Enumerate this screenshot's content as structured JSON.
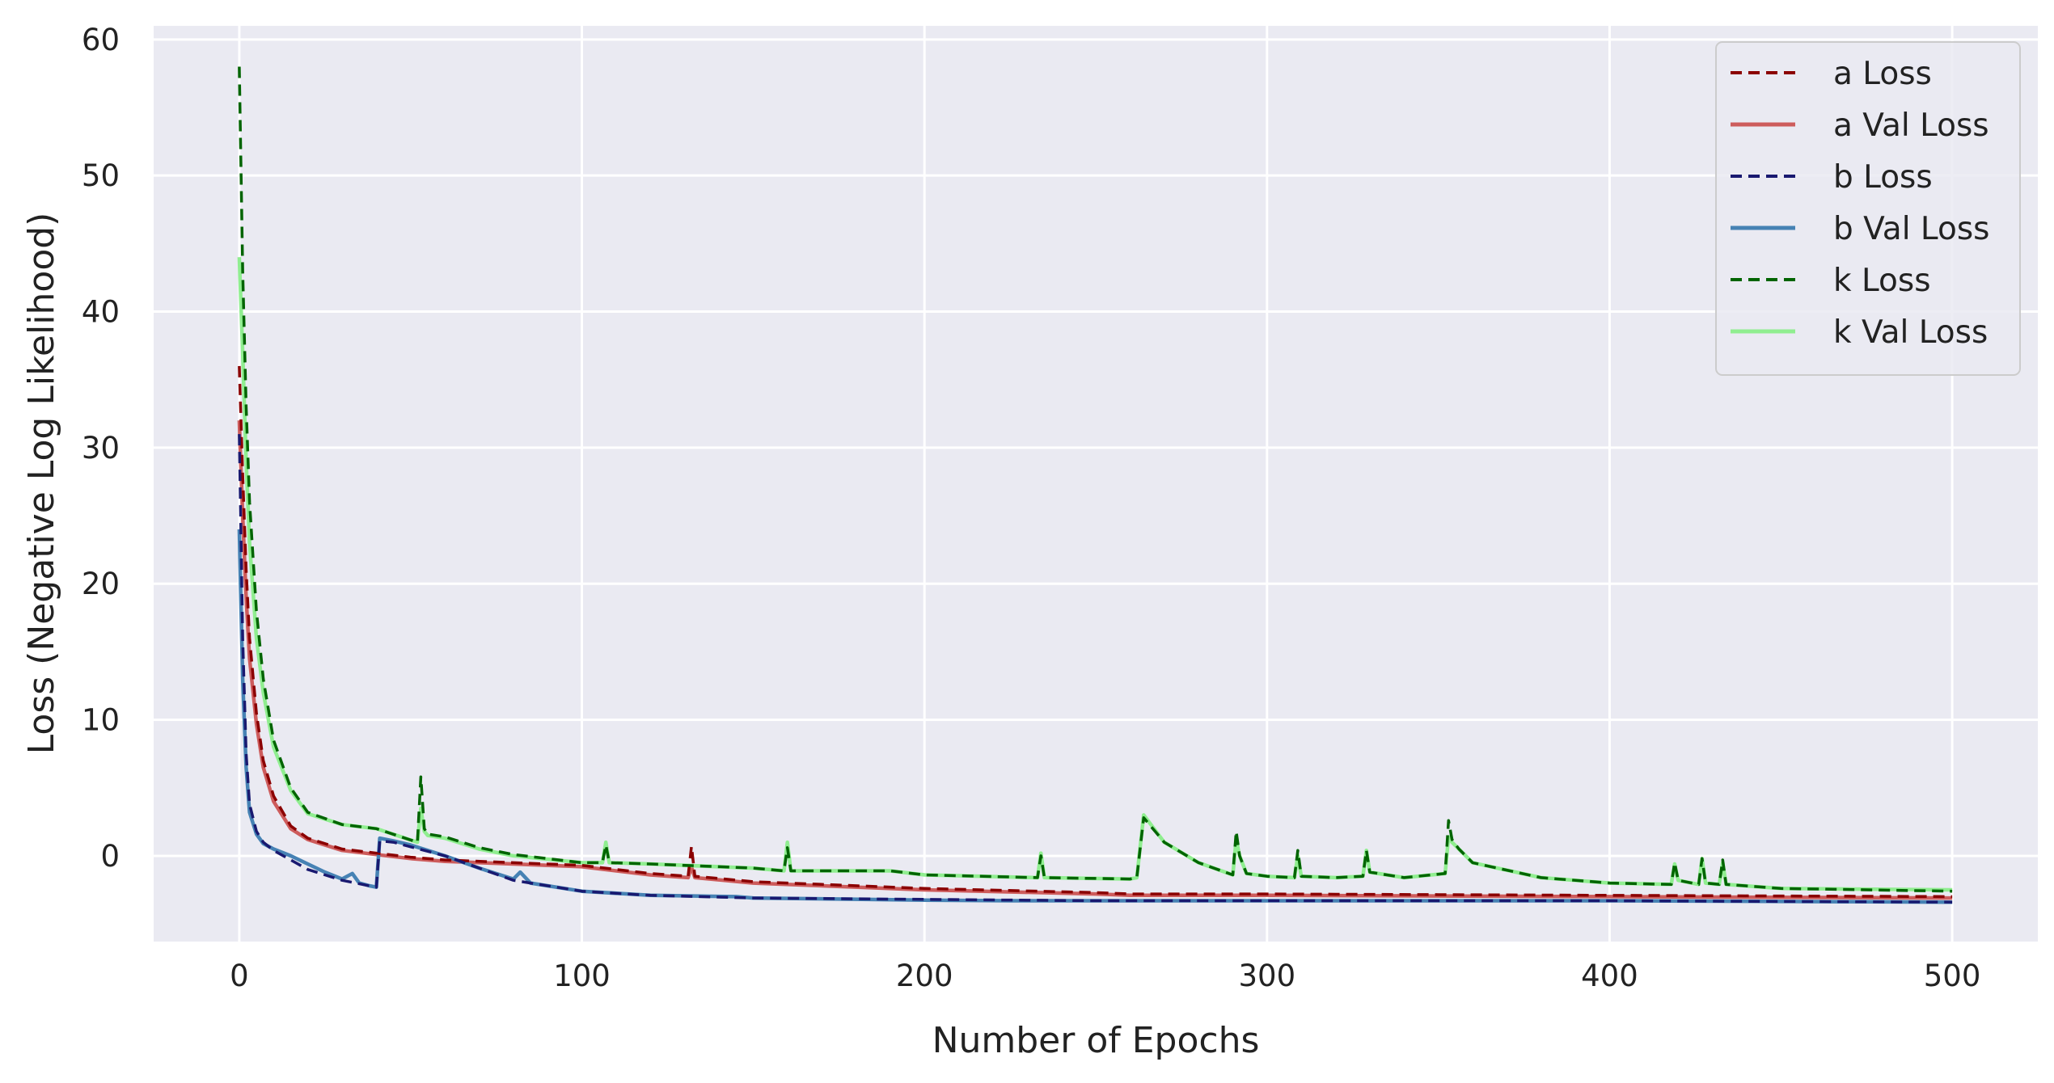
{
  "chart_data": {
    "type": "line",
    "title": "",
    "xlabel": "Number of Epochs",
    "ylabel": "Loss (Negative Log Likelihood)",
    "xlim": [
      -25,
      525
    ],
    "ylim": [
      -6.3,
      61
    ],
    "xticks": [
      0,
      100,
      200,
      300,
      400,
      500
    ],
    "yticks": [
      0,
      10,
      20,
      30,
      40,
      50,
      60
    ],
    "grid": true,
    "legend_position": "top-right",
    "series": [
      {
        "name": "a Loss",
        "color": "#8b0000",
        "dash": "dashed",
        "x": [
          0,
          1,
          2,
          3,
          5,
          7,
          10,
          15,
          20,
          30,
          40,
          50,
          60,
          80,
          100,
          120,
          131,
          132,
          133,
          150,
          200,
          250,
          260,
          300,
          400,
          500
        ],
        "y": [
          36,
          28,
          21,
          16,
          10.5,
          7,
          4.4,
          2.2,
          1.3,
          0.5,
          0.2,
          -0.1,
          -0.3,
          -0.5,
          -0.7,
          -1.3,
          -1.5,
          0.7,
          -1.5,
          -1.9,
          -2.4,
          -2.7,
          -2.8,
          -2.8,
          -2.9,
          -3.0
        ]
      },
      {
        "name": "a Val Loss",
        "color": "#cd5c5c",
        "dash": "solid",
        "x": [
          0,
          1,
          2,
          3,
          5,
          7,
          10,
          15,
          20,
          30,
          40,
          50,
          60,
          80,
          100,
          120,
          131,
          132,
          133,
          150,
          200,
          250,
          260,
          300,
          400,
          500
        ],
        "y": [
          32,
          25,
          19,
          14.5,
          9.7,
          6.5,
          4.0,
          2.0,
          1.2,
          0.4,
          0.1,
          -0.2,
          -0.4,
          -0.6,
          -0.8,
          -1.4,
          -1.6,
          -0.8,
          -1.6,
          -2.0,
          -2.5,
          -2.8,
          -2.9,
          -2.9,
          -3.0,
          -3.1
        ]
      },
      {
        "name": "b Loss",
        "color": "#191970",
        "dash": "dashed",
        "x": [
          0,
          1,
          2,
          3,
          5,
          7,
          10,
          15,
          20,
          30,
          38,
          40,
          41,
          45,
          60,
          80,
          100,
          120,
          150,
          200,
          250,
          300,
          400,
          500
        ],
        "y": [
          31,
          16,
          7.5,
          3.8,
          1.8,
          1.0,
          0.4,
          -0.3,
          -1.0,
          -1.8,
          -2.2,
          -2.3,
          1.1,
          1.0,
          0.0,
          -1.8,
          -2.6,
          -2.9,
          -3.1,
          -3.2,
          -3.3,
          -3.3,
          -3.3,
          -3.4
        ]
      },
      {
        "name": "b Val Loss",
        "color": "#4682b4",
        "dash": "solid",
        "x": [
          0,
          1,
          2,
          3,
          5,
          7,
          10,
          15,
          20,
          25,
          30,
          33,
          35,
          38,
          40,
          41,
          45,
          50,
          60,
          70,
          80,
          82,
          85,
          100,
          120,
          145,
          150,
          200,
          225,
          250,
          300,
          400,
          500
        ],
        "y": [
          24,
          13,
          6.5,
          3.2,
          1.6,
          0.9,
          0.5,
          0.0,
          -0.6,
          -1.2,
          -1.7,
          -1.3,
          -2.0,
          -2.2,
          -2.3,
          1.3,
          1.1,
          0.8,
          0.0,
          -0.9,
          -1.7,
          -1.2,
          -2.0,
          -2.6,
          -2.9,
          -3.0,
          -3.1,
          -3.25,
          -3.3,
          -3.3,
          -3.3,
          -3.3,
          -3.4
        ]
      },
      {
        "name": "k Loss",
        "color": "#006400",
        "dash": "dashed",
        "x": [
          0,
          1,
          2,
          3,
          5,
          7,
          10,
          15,
          20,
          30,
          40,
          52,
          53,
          54,
          55,
          60,
          70,
          80,
          100,
          106,
          107,
          108,
          120,
          150,
          159,
          160,
          161,
          190,
          200,
          233,
          234,
          235,
          260,
          262,
          264,
          270,
          280,
          290,
          291,
          292,
          294,
          300,
          308,
          309,
          310,
          320,
          328,
          329,
          330,
          340,
          352,
          353,
          354,
          356,
          360,
          380,
          400,
          418,
          419,
          420,
          426,
          427,
          428,
          432,
          433,
          434,
          450,
          500
        ],
        "y": [
          58,
          43,
          33,
          26,
          18,
          13,
          8.5,
          5.0,
          3.2,
          2.3,
          2.0,
          1.0,
          5.8,
          2.0,
          1.6,
          1.4,
          0.6,
          0.1,
          -0.5,
          -0.5,
          0.8,
          -0.5,
          -0.6,
          -0.9,
          -1.1,
          0.6,
          -1.1,
          -1.1,
          -1.4,
          -1.6,
          0.0,
          -1.6,
          -1.7,
          -1.6,
          2.8,
          1.0,
          -0.5,
          -1.4,
          1.8,
          0.0,
          -1.3,
          -1.5,
          -1.6,
          0.4,
          -1.5,
          -1.6,
          -1.5,
          0.4,
          -1.2,
          -1.6,
          -1.3,
          2.6,
          1.2,
          0.5,
          -0.5,
          -1.6,
          -2.0,
          -2.1,
          -0.5,
          -1.8,
          -2.1,
          -0.2,
          -2.0,
          -2.1,
          -0.3,
          -2.1,
          -2.4,
          -2.6
        ]
      },
      {
        "name": "k Val Loss",
        "color": "#90ee90",
        "dash": "solid",
        "x": [
          0,
          1,
          2,
          3,
          5,
          7,
          10,
          15,
          20,
          30,
          40,
          52,
          53,
          54,
          55,
          60,
          70,
          80,
          100,
          106,
          107,
          108,
          120,
          150,
          159,
          160,
          161,
          190,
          200,
          233,
          234,
          235,
          260,
          262,
          264,
          270,
          280,
          290,
          291,
          292,
          294,
          300,
          308,
          309,
          310,
          320,
          328,
          329,
          330,
          340,
          352,
          353,
          354,
          356,
          360,
          380,
          400,
          418,
          419,
          420,
          426,
          427,
          428,
          432,
          433,
          434,
          450,
          500
        ],
        "y": [
          44,
          37,
          29,
          23,
          16,
          12,
          8.0,
          4.8,
          3.1,
          2.3,
          2.0,
          1.0,
          3.5,
          1.8,
          1.5,
          1.3,
          0.5,
          0.0,
          -0.5,
          -0.5,
          1.0,
          -0.5,
          -0.6,
          -0.9,
          -1.1,
          1.0,
          -1.1,
          -1.1,
          -1.4,
          -1.6,
          0.2,
          -1.6,
          -1.7,
          -1.6,
          3.0,
          1.0,
          -0.5,
          -1.4,
          1.2,
          0.0,
          -1.3,
          -1.5,
          -1.6,
          0.0,
          -1.5,
          -1.6,
          -1.5,
          0.4,
          -1.2,
          -1.6,
          -1.3,
          1.4,
          1.0,
          0.5,
          -0.5,
          -1.6,
          -2.0,
          -2.1,
          -0.6,
          -1.8,
          -2.1,
          -0.2,
          -2.0,
          -2.1,
          -0.5,
          -2.1,
          -2.4,
          -2.5
        ]
      }
    ]
  }
}
